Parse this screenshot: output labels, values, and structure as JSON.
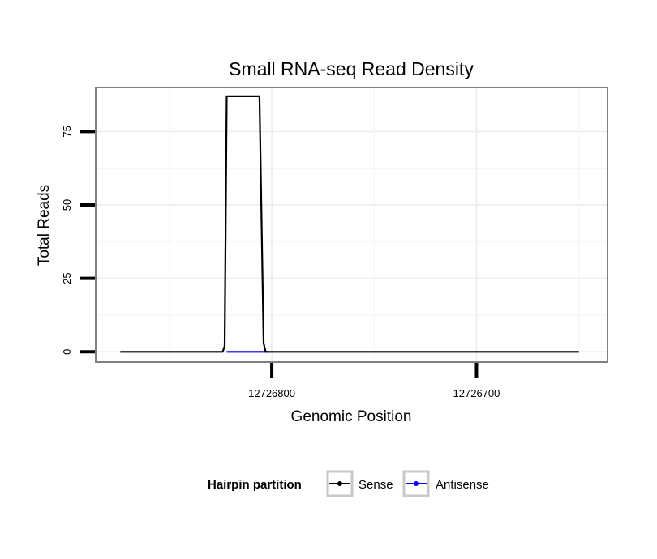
{
  "chart_data": {
    "type": "line",
    "title": "Small RNA-seq Read Density",
    "xlabel": "Genomic Position",
    "ylabel": "Total Reads",
    "x_reversed": true,
    "xlim": [
      12726886,
      12726636
    ],
    "ylim": [
      -3.5,
      90
    ],
    "x_ticks": [
      12726800,
      12726700
    ],
    "x_tick_labels": [
      "12726800",
      "12726700"
    ],
    "y_ticks": [
      0,
      25,
      50,
      75
    ],
    "y_tick_labels": [
      "0",
      "25",
      "50",
      "75"
    ],
    "grid": true,
    "legend_position": "bottom",
    "legend_title": "Hairpin partition",
    "series": [
      {
        "name": "Sense",
        "color": "#000000",
        "x": [
          12726874,
          12726824,
          12726823,
          12726822,
          12726806,
          12726804,
          12726803,
          12726650
        ],
        "y": [
          0,
          0,
          2,
          87,
          87,
          3,
          0,
          0
        ]
      },
      {
        "name": "Antisense",
        "color": "#0000ff",
        "x": [
          12726822,
          12726802
        ],
        "y": [
          0,
          0
        ]
      }
    ]
  }
}
